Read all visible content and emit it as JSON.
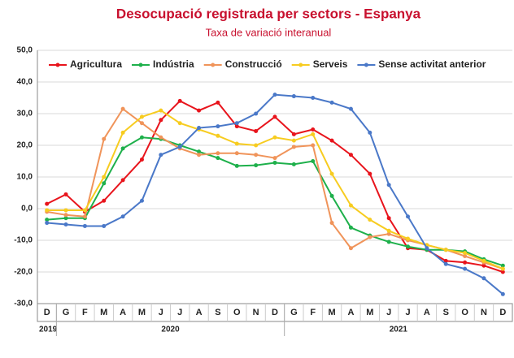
{
  "chart_data": {
    "type": "line",
    "title": "Desocupació registrada per sectors - Espanya",
    "subtitle": "Taxa de variació interanual",
    "categories": [
      "D",
      "G",
      "F",
      "M",
      "A",
      "M",
      "J",
      "J",
      "A",
      "S",
      "O",
      "N",
      "D",
      "G",
      "F",
      "M",
      "A",
      "M",
      "J",
      "J",
      "A",
      "S",
      "O",
      "N",
      "D"
    ],
    "years": [
      "2019",
      "2020",
      "2021"
    ],
    "ylim": [
      -30,
      50
    ],
    "yticks": [
      {
        "value": -30,
        "label": "-30,0"
      },
      {
        "value": -20,
        "label": "-20,0"
      },
      {
        "value": -10,
        "label": "-10,0"
      },
      {
        "value": 0,
        "label": "0,0"
      },
      {
        "value": 10,
        "label": "10,0"
      },
      {
        "value": 20,
        "label": "20,0"
      },
      {
        "value": 30,
        "label": "30,0"
      },
      {
        "value": 40,
        "label": "40,0"
      },
      {
        "value": 50,
        "label": "50,0"
      }
    ],
    "grid": true,
    "legend": "top",
    "series": [
      {
        "name": "Agricultura",
        "color": "#e8141c",
        "values": [
          1.5,
          4.5,
          -1,
          2.5,
          9,
          15.5,
          28,
          34,
          31,
          33.5,
          26,
          24.5,
          29,
          23.5,
          25,
          21.5,
          17,
          11,
          -3,
          -12.5,
          -13,
          -16.5,
          -17,
          -18,
          -20
        ]
      },
      {
        "name": "Indústria",
        "color": "#1eb04b",
        "values": [
          -3.5,
          -3,
          -3,
          8,
          19,
          22.5,
          22,
          20,
          18,
          16,
          13.5,
          13.7,
          14.5,
          14,
          15,
          4,
          -6,
          -8.5,
          -10.5,
          -12,
          -13,
          -13,
          -13.5,
          -16,
          -18
        ]
      },
      {
        "name": "Construcció",
        "color": "#f0945a",
        "values": [
          -1,
          -2,
          -2.5,
          22,
          31.5,
          27,
          22.5,
          19,
          17,
          17.5,
          17.5,
          17,
          16,
          19.5,
          20,
          -4.5,
          -12.5,
          -9,
          -8,
          -10,
          -11.5,
          -13,
          -15,
          -17,
          -19
        ]
      },
      {
        "name": "Serveis",
        "color": "#f7cc20",
        "values": [
          -0.5,
          -0.5,
          -0.5,
          10,
          24,
          29,
          31,
          27,
          25,
          23,
          20.5,
          20,
          22.5,
          21.5,
          23.5,
          11,
          1,
          -3.5,
          -7,
          -9.5,
          -11.5,
          -13,
          -14,
          -16.5,
          -19
        ]
      },
      {
        "name": "Sense activitat anterior",
        "color": "#4a78c8",
        "values": [
          -4.5,
          -5,
          -5.5,
          -5.5,
          -2.5,
          2.5,
          17,
          19.5,
          25.5,
          26,
          27,
          30,
          36,
          35.5,
          35,
          33.5,
          31.5,
          24,
          7.5,
          -2.5,
          -12.5,
          -17.5,
          -19,
          -22,
          -27
        ]
      }
    ]
  }
}
